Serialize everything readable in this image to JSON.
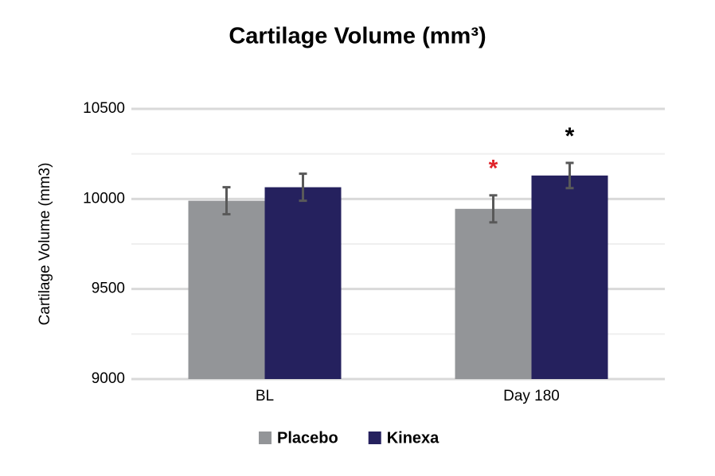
{
  "chart_data": {
    "type": "bar",
    "title": "Cartilage Volume (mm³)",
    "y_label": "Cartilage Volume (mm3)",
    "categories": [
      "BL",
      "Day 180"
    ],
    "series": [
      {
        "name": "Placebo",
        "color": "#939598",
        "values": [
          9990,
          9945
        ],
        "errors": [
          75,
          75
        ],
        "significance": [
          null,
          "*"
        ],
        "significance_color": "#e0242b"
      },
      {
        "name": "Kinexa",
        "color": "#25215e",
        "values": [
          10065,
          10130
        ],
        "errors": [
          75,
          70
        ],
        "significance": [
          null,
          "*"
        ],
        "significance_color": "#000000"
      }
    ],
    "error_color": "#595959",
    "ylim": [
      9000,
      10500
    ],
    "yticks": [
      9000,
      9500,
      10000,
      10500
    ],
    "minor_yticks": [
      9250,
      9750,
      10250
    ],
    "grid": true,
    "legend": "bottom"
  }
}
